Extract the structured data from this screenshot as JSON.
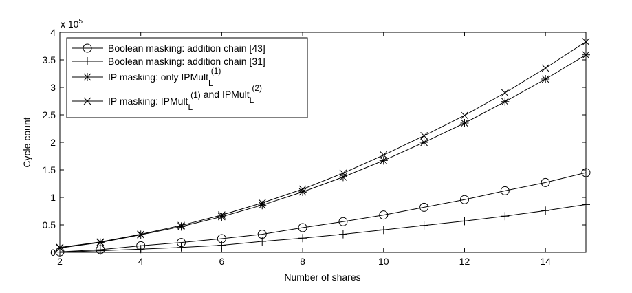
{
  "chart_data": {
    "type": "line",
    "title": "",
    "xlabel": "Number of shares",
    "ylabel": "Cycle count",
    "y_multiplier_base": "x 10",
    "y_multiplier_exp": "5",
    "xlim": [
      2,
      15
    ],
    "ylim": [
      0,
      4
    ],
    "xticks": [
      2,
      4,
      6,
      8,
      10,
      12,
      14
    ],
    "yticks": [
      "0",
      "0.5",
      "1",
      "1.5",
      "2",
      "2.5",
      "3",
      "3.5",
      "4"
    ],
    "grid": false,
    "legend_position": "top-left",
    "x": [
      2,
      3,
      4,
      5,
      6,
      7,
      8,
      9,
      10,
      11,
      12,
      13,
      14,
      15
    ],
    "series": [
      {
        "name": "Boolean masking: addition chain [43]",
        "marker": "circle",
        "label_parts": [
          {
            "t": "Boolean masking: addition chain [43]"
          }
        ],
        "values": [
          0.01,
          0.05,
          0.12,
          0.18,
          0.25,
          0.33,
          0.45,
          0.56,
          0.68,
          0.82,
          0.96,
          1.12,
          1.27,
          1.45
        ]
      },
      {
        "name": "Boolean masking: addition chain [31]",
        "marker": "plus",
        "label_parts": [
          {
            "t": "Boolean masking: addition chain [31]"
          }
        ],
        "values": [
          0.005,
          0.03,
          0.06,
          0.09,
          0.13,
          0.2,
          0.26,
          0.33,
          0.41,
          0.49,
          0.57,
          0.66,
          0.76,
          0.87
        ]
      },
      {
        "name": "IP masking: only IPMult_L^(1)",
        "marker": "star",
        "label_parts": [
          {
            "t": "IP masking: only IPMult"
          },
          {
            "sub": "L",
            "sup": "(1)"
          }
        ],
        "values": [
          0.08,
          0.18,
          0.32,
          0.47,
          0.65,
          0.86,
          1.1,
          1.37,
          1.67,
          2.0,
          2.35,
          2.74,
          3.15,
          3.59
        ]
      },
      {
        "name": "IP masking: IPMult_L^(1) and IPMult_L^(2)",
        "marker": "x",
        "label_parts": [
          {
            "t": "IP masking: IPMult"
          },
          {
            "sub": "L",
            "sup": "(1)"
          },
          {
            "t": " and IPMult"
          },
          {
            "sub": "L",
            "sup": "(2)"
          }
        ],
        "values": [
          0.09,
          0.19,
          0.33,
          0.49,
          0.68,
          0.9,
          1.15,
          1.44,
          1.77,
          2.12,
          2.49,
          2.9,
          3.35,
          3.83
        ]
      }
    ]
  }
}
